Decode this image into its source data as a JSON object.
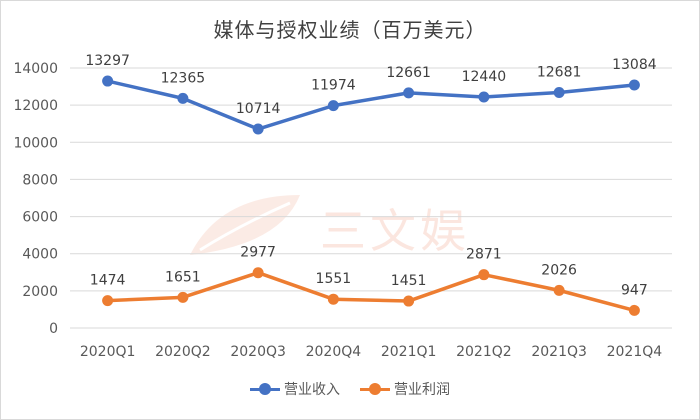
{
  "chart_data": {
    "type": "line",
    "title": "媒体与授权业绩（百万美元）",
    "categories": [
      "2020Q1",
      "2020Q2",
      "2020Q3",
      "2020Q4",
      "2021Q1",
      "2021Q2",
      "2021Q3",
      "2021Q4"
    ],
    "series": [
      {
        "name": "营业收入",
        "color": "#4472c4",
        "values": [
          13297,
          12365,
          10714,
          11974,
          12661,
          12440,
          12681,
          13084
        ]
      },
      {
        "name": "营业利润",
        "color": "#ed7d31",
        "values": [
          1474,
          1651,
          2977,
          1551,
          1451,
          2871,
          2026,
          947
        ]
      }
    ],
    "yticks": [
      "0",
      "2000",
      "4000",
      "6000",
      "8000",
      "10000",
      "12000",
      "14000"
    ],
    "ylim": [
      0,
      14000
    ],
    "grid": true,
    "legend": "bottom",
    "watermark": "三文娱"
  }
}
